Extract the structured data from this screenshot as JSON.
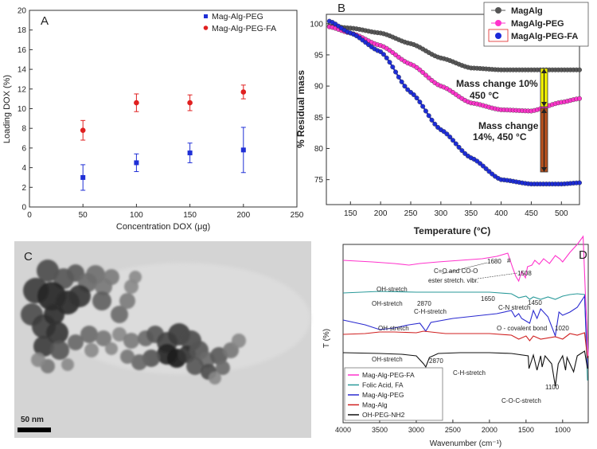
{
  "chart_data": [
    {
      "panel": "A",
      "type": "scatter",
      "xlabel": "Concentration DOX (μg)",
      "ylabel": "Loading DOX (%)",
      "xlim": [
        0,
        250
      ],
      "ylim": [
        0,
        20
      ],
      "xticks": [
        "0",
        "50",
        "100",
        "150",
        "200",
        "250"
      ],
      "yticks": [
        "0",
        "2",
        "4",
        "6",
        "8",
        "10",
        "12",
        "14",
        "16",
        "18",
        "20"
      ],
      "series": [
        {
          "name": "Mag-Alg-PEG",
          "color": "#1f2fd6",
          "marker": "square",
          "x": [
            50,
            100,
            150,
            200
          ],
          "y": [
            3.0,
            4.5,
            5.5,
            5.8
          ],
          "err": [
            1.3,
            0.9,
            1.0,
            2.3
          ]
        },
        {
          "name": "Mag-Alg-PEG-FA",
          "color": "#e02020",
          "marker": "circle",
          "x": [
            50,
            100,
            150,
            200
          ],
          "y": [
            7.8,
            10.6,
            10.6,
            11.7
          ],
          "err": [
            1.0,
            0.9,
            0.8,
            0.7
          ]
        }
      ]
    },
    {
      "panel": "B",
      "type": "line",
      "xlabel": "Temperature (°C)",
      "ylabel": "% Residual mass",
      "xlim": [
        110,
        530
      ],
      "ylim": [
        71,
        101.5
      ],
      "xticks": [
        "150",
        "200",
        "250",
        "300",
        "350",
        "400",
        "450",
        "500"
      ],
      "yticks": [
        "75",
        "80",
        "85",
        "90",
        "95",
        "100"
      ],
      "series": [
        {
          "name": "MagAlg",
          "color": "#555555",
          "x": [
            115,
            150,
            200,
            250,
            300,
            350,
            400,
            450,
            500,
            530
          ],
          "y": [
            99.6,
            99.3,
            98.5,
            96.8,
            94.5,
            92.9,
            92.6,
            92.6,
            92.6,
            92.6
          ]
        },
        {
          "name": "MagAlg-PEG",
          "color": "#ff33cc",
          "x": [
            115,
            150,
            200,
            250,
            300,
            350,
            400,
            450,
            500,
            530
          ],
          "y": [
            99.5,
            98.5,
            96.5,
            93.5,
            90.0,
            87.3,
            86.2,
            86.0,
            87.4,
            88.0
          ]
        },
        {
          "name": "MagAlg-PEG-FA",
          "color": "#1a2ad8",
          "x": [
            115,
            150,
            200,
            250,
            300,
            350,
            400,
            450,
            500,
            530
          ],
          "y": [
            100.4,
            98.5,
            95.5,
            89.0,
            83.0,
            78.5,
            75.0,
            74.3,
            74.3,
            74.5
          ]
        }
      ],
      "annotations": [
        "Mass change 10%",
        "450 °C",
        "Mass change",
        "14%,  450 °C"
      ]
    },
    {
      "panel": "D",
      "type": "line",
      "xlabel": "Wavenumber (cm⁻¹)",
      "ylabel": "T (%)",
      "xlim": [
        4000,
        650
      ],
      "xticks": [
        "4000",
        "3500",
        "3000",
        "2500",
        "2000",
        "1500",
        "1000"
      ],
      "series": [
        {
          "name": "Mag-Alg-PEG-FA",
          "color": "#ff33cc"
        },
        {
          "name": "Folic Acid, FA",
          "color": "#2a9a9a"
        },
        {
          "name": "Mag-Alg-PEG",
          "color": "#2a2ad0"
        },
        {
          "name": "Mag-Alg",
          "color": "#d02020"
        },
        {
          "name": "OH-PEG-NH2",
          "color": "#111111"
        }
      ],
      "annotations": [
        "OH-stretch",
        "1680",
        "#",
        "C=O and CO-O",
        "ester stretch. vibr.",
        "1508",
        "2870",
        "C-H-stretch",
        "1650",
        "C-N stretch",
        "1450",
        "O - covalent bond",
        "1020",
        "C-O-C-stretch",
        "1100"
      ]
    }
  ],
  "panel_labels": {
    "a": "A",
    "b": "B",
    "c": "C",
    "d": "D"
  },
  "image": {
    "scale_bar": "50 nm"
  }
}
